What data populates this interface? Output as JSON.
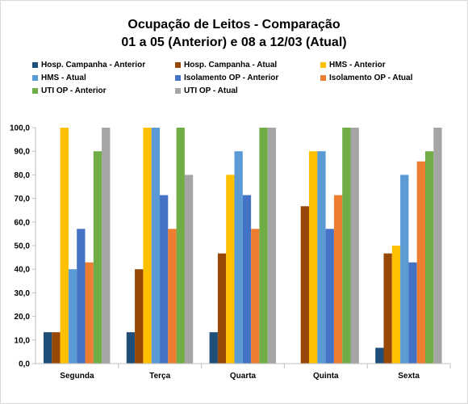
{
  "chart_data": {
    "type": "bar",
    "title_line1": "Ocupação de Leitos - Comparação",
    "title_line2": "01 a 05 (Anterior) e 08 a 12/03 (Atual)",
    "categories": [
      "Segunda",
      "Terça",
      "Quarta",
      "Quinta",
      "Sexta"
    ],
    "ylim": [
      0,
      100
    ],
    "yticks": [
      "0,0",
      "10,0",
      "20,0",
      "30,0",
      "40,0",
      "50,0",
      "60,0",
      "70,0",
      "80,0",
      "90,0",
      "100,0"
    ],
    "grid": false,
    "legend_position": "top",
    "series": [
      {
        "name": "Hosp. Campanha - Anterior",
        "color": "#1f4e79",
        "values": [
          13.3,
          13.3,
          13.3,
          0,
          6.7
        ]
      },
      {
        "name": "Hosp. Campanha - Atual",
        "color": "#974706",
        "values": [
          13.3,
          40,
          46.7,
          66.7,
          46.7
        ]
      },
      {
        "name": "HMS - Anterior",
        "color": "#ffc000",
        "values": [
          100,
          100,
          80,
          90,
          50
        ]
      },
      {
        "name": "HMS - Atual",
        "color": "#5b9bd5",
        "values": [
          40,
          100,
          90,
          90,
          80
        ]
      },
      {
        "name": "Isolamento OP - Anterior",
        "color": "#4472c4",
        "values": [
          57.1,
          71.4,
          71.4,
          57.1,
          42.9
        ]
      },
      {
        "name": "Isolamento OP - Atual",
        "color": "#ed7d31",
        "values": [
          42.9,
          57.1,
          57.1,
          71.4,
          85.7
        ]
      },
      {
        "name": "UTI OP - Anterior",
        "color": "#70ad47",
        "values": [
          90,
          100,
          100,
          100,
          90
        ]
      },
      {
        "name": "UTI OP - Atual",
        "color": "#a5a5a5",
        "values": [
          100,
          80,
          100,
          100,
          100
        ]
      }
    ]
  }
}
